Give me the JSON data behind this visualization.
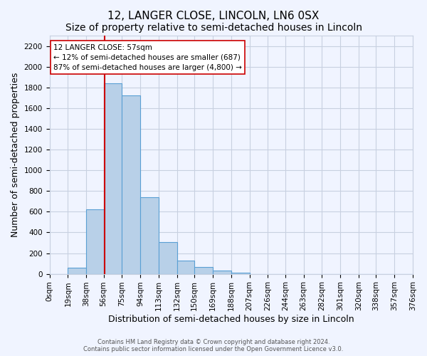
{
  "title": "12, LANGER CLOSE, LINCOLN, LN6 0SX",
  "subtitle": "Size of property relative to semi-detached houses in Lincoln",
  "xlabel": "Distribution of semi-detached houses by size in Lincoln",
  "ylabel": "Number of semi-detached properties",
  "bar_color": "#b8d0e8",
  "bar_edge_color": "#5a9fd4",
  "background_color": "#f0f4ff",
  "grid_color": "#c8d0e0",
  "bin_edges": [
    0,
    19,
    38,
    56,
    75,
    94,
    113,
    132,
    150,
    169,
    188,
    207,
    226,
    244,
    263,
    282,
    301,
    320,
    338,
    357,
    376
  ],
  "bin_labels": [
    "0sqm",
    "19sqm",
    "38sqm",
    "56sqm",
    "75sqm",
    "94sqm",
    "113sqm",
    "132sqm",
    "150sqm",
    "169sqm",
    "188sqm",
    "207sqm",
    "226sqm",
    "244sqm",
    "263sqm",
    "282sqm",
    "301sqm",
    "320sqm",
    "338sqm",
    "357sqm",
    "376sqm"
  ],
  "bar_heights": [
    0,
    60,
    625,
    1840,
    1720,
    740,
    305,
    130,
    65,
    35,
    10,
    0,
    0,
    0,
    0,
    0,
    0,
    0,
    0,
    0,
    0
  ],
  "ylim": [
    0,
    2300
  ],
  "yticks": [
    0,
    200,
    400,
    600,
    800,
    1000,
    1200,
    1400,
    1600,
    1800,
    2000,
    2200
  ],
  "property_size": 57,
  "red_line_color": "#cc0000",
  "annotation_title": "12 LANGER CLOSE: 57sqm",
  "annotation_line1": "← 12% of semi-detached houses are smaller (687)",
  "annotation_line2": "87% of semi-detached houses are larger (4,800) →",
  "annotation_box_color": "#ffffff",
  "annotation_box_edge": "#cc0000",
  "footer_line1": "Contains HM Land Registry data © Crown copyright and database right 2024.",
  "footer_line2": "Contains public sector information licensed under the Open Government Licence v3.0.",
  "title_fontsize": 11,
  "subtitle_fontsize": 10,
  "axis_label_fontsize": 9,
  "tick_fontsize": 7.5
}
